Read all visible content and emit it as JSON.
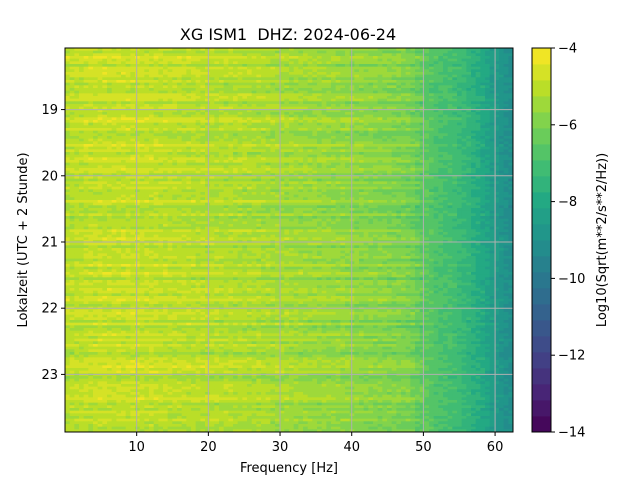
{
  "chart_data": {
    "type": "heatmap",
    "title": "XG ISM1  DHZ: 2024-06-24",
    "xlabel": "Frequency [Hz]",
    "ylabel": "Lokalzeit (UTC + 2 Stunde)",
    "xlim": [
      0,
      62.5
    ],
    "ylim": [
      18.07,
      23.87
    ],
    "x_ticks": [
      10,
      20,
      30,
      40,
      50,
      60
    ],
    "y_ticks": [
      19,
      20,
      21,
      22,
      23
    ],
    "grid": true,
    "y_inverted": true,
    "colorbar": {
      "label": "Log10(Sqrt(m**2/s**2/Hz))",
      "range": [
        -14,
        -4
      ],
      "ticks": [
        -14,
        -12,
        -10,
        -8,
        -6,
        -4
      ],
      "colormap": "viridis",
      "levels": 24
    },
    "spectrum_profile": {
      "frequency_hz": [
        0,
        2,
        5,
        10,
        15,
        20,
        25,
        30,
        35,
        40,
        45,
        48,
        50,
        52,
        55,
        58,
        60,
        62.5
      ],
      "log10_amplitude": [
        -5.1,
        -5.0,
        -4.9,
        -4.9,
        -5.0,
        -5.1,
        -5.2,
        -5.35,
        -5.5,
        -5.65,
        -5.85,
        -6.0,
        -6.5,
        -6.8,
        -7.2,
        -7.9,
        -8.6,
        -9.2
      ]
    },
    "colors": {
      "axes": "#000000",
      "grid": "#b0b0b0"
    }
  }
}
